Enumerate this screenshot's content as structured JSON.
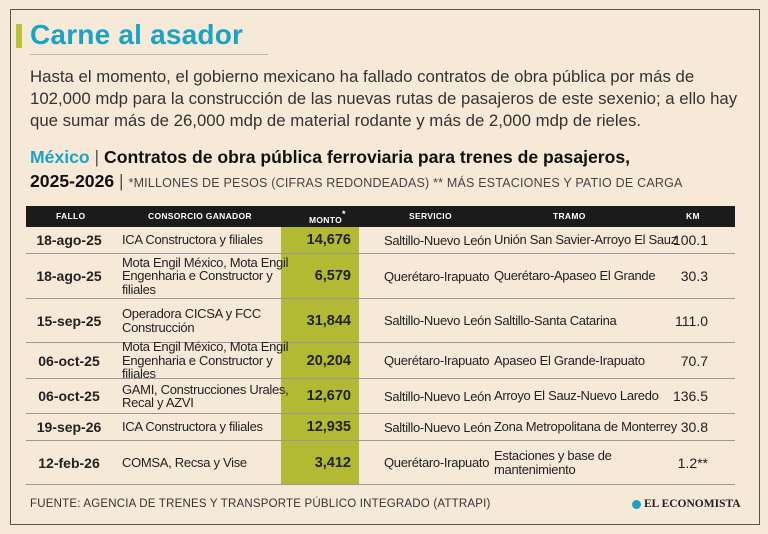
{
  "title": "Carne al asador",
  "intro": "Hasta el momento, el gobierno mexicano ha fallado contratos de obra pública por más de 102,000 mdp para la construcción de las nuevas rutas de pasajeros de este sexenio; a ello hay que sumar más de 26,000 mdp de material rodante y más de 2,000 mdp de rieles.",
  "subtitle": {
    "country": "México",
    "separator": "|",
    "heading": "Contratos de obra pública ferroviaria para trenes de pasajeros,",
    "years": "2025-2026",
    "note": "*MILLONES DE PESOS (CIFRAS REDONDEADAS) ** MÁS ESTACIONES Y PATIO DE CARGA"
  },
  "table": {
    "headers": {
      "fallo": "FALLO",
      "consorcio": "CONSORCIO GANADOR",
      "monto": "MONTO",
      "monto_mark": "*",
      "servicio": "SERVICIO",
      "tramo": "TRAMO",
      "km": "KM"
    },
    "rows": [
      {
        "fallo": "18-ago-25",
        "consorcio": "ICA Constructora y filiales",
        "monto": "14,676",
        "servicio": "Saltillo-Nuevo León",
        "tramo": "Unión San Savier-Arroyo El Sauz",
        "km": "100.1"
      },
      {
        "fallo": "18-ago-25",
        "consorcio": "Mota Engil México, Mota Engil Engenharia e Constructor y filiales",
        "monto": "6,579",
        "servicio": "Querétaro-Irapuato",
        "tramo": "Querétaro-Apaseo El Grande",
        "km": "30.3"
      },
      {
        "fallo": "15-sep-25",
        "consorcio": "Operadora CICSA y FCC Construcción",
        "monto": "31,844",
        "servicio": "Saltillo-Nuevo León",
        "tramo": "Saltillo-Santa Catarina",
        "km": "111.0"
      },
      {
        "fallo": "06-oct-25",
        "consorcio": "Mota Engil México, Mota Engil Engenharia e Constructor y filiales",
        "monto": "20,204",
        "servicio": "Querétaro-Irapuato",
        "tramo": "Apaseo El Grande-Irapuato",
        "km": "70.7"
      },
      {
        "fallo": "06-oct-25",
        "consorcio": "GAMI, Construcciones Urales, Recal y AZVI",
        "monto": "12,670",
        "servicio": "Saltillo-Nuevo León",
        "tramo": "Arroyo El Sauz-Nuevo Laredo",
        "km": "136.5"
      },
      {
        "fallo": "19-sep-26",
        "consorcio": "ICA Constructora y filiales",
        "monto": "12,935",
        "servicio": "Saltillo-Nuevo León",
        "tramo": "Zona Metropolitana de Monterrey",
        "km": "30.8"
      },
      {
        "fallo": "12-feb-26",
        "consorcio": "COMSA, Recsa y Vise",
        "monto": "3,412",
        "servicio": "Querétaro-Irapuato",
        "tramo": "Estaciones y base de mantenimiento",
        "km": "1.2**"
      }
    ]
  },
  "source": "FUENTE: AGENCIA DE TRENES Y TRANSPORTE PÚBLICO INTEGRADO (ATTRAPI)",
  "logo": "EL ECONOMISTA",
  "colors": {
    "accent": "#1aa3c4",
    "highlight": "#b2ba34",
    "background": "#f7e9d8",
    "header": "#1b1b1b"
  }
}
